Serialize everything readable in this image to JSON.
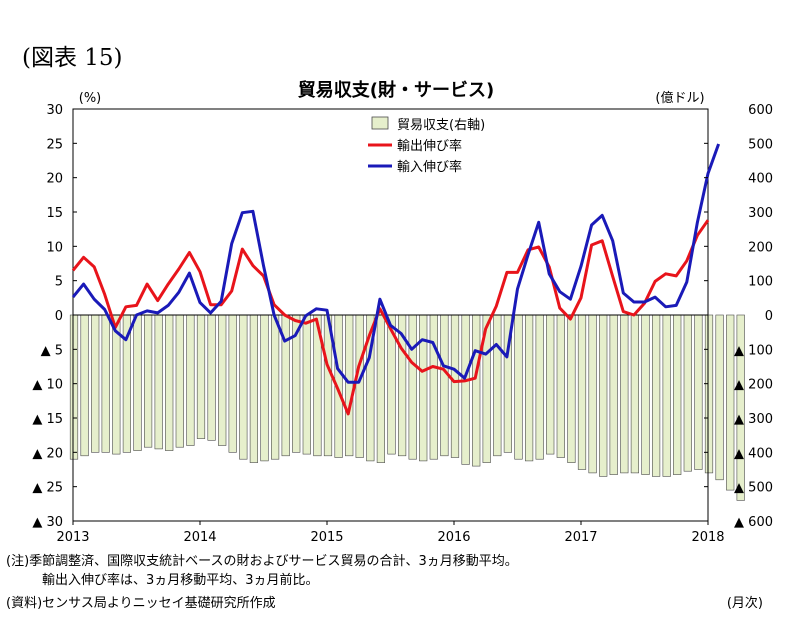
{
  "figure_label": "(図表 15)",
  "chart_data": {
    "type": "bar+line",
    "title": "貿易収支(財・サービス)",
    "y_left_unit": "(%)",
    "y_right_unit": "(億ドル)",
    "y_left_range": [
      -30,
      30
    ],
    "y_right_range": [
      -600,
      600
    ],
    "y_left_ticks": [
      "30",
      "25",
      "20",
      "15",
      "10",
      "5",
      "0",
      "▲ 5",
      "▲ 10",
      "▲ 15",
      "▲ 20",
      "▲ 25",
      "▲ 30"
    ],
    "y_right_ticks": [
      "600",
      "500",
      "400",
      "300",
      "200",
      "100",
      "0",
      "▲ 100",
      "▲ 200",
      "▲ 300",
      "▲ 400",
      "▲ 500",
      "▲ 600"
    ],
    "x_range": [
      2013,
      2018
    ],
    "x_ticks": [
      "2013",
      "2014",
      "2015",
      "2016",
      "2017",
      "2018"
    ],
    "x_unit": "(月次)",
    "grid": false,
    "legend_position": "top-center",
    "series": [
      {
        "name": "貿易収支(右軸)",
        "kind": "bar",
        "axis": "right",
        "color": "#e6efcc",
        "stroke": "#4a4a4a",
        "x_start": 2013.0,
        "x_step": 0.0833333,
        "values": [
          -420,
          -410,
          -400,
          -400,
          -405,
          -400,
          -395,
          -385,
          -390,
          -395,
          -385,
          -380,
          -360,
          -365,
          -380,
          -400,
          -420,
          -430,
          -425,
          -420,
          -410,
          -400,
          -405,
          -410,
          -410,
          -415,
          -410,
          -415,
          -425,
          -430,
          -405,
          -410,
          -420,
          -425,
          -420,
          -410,
          -415,
          -435,
          -440,
          -430,
          -410,
          -400,
          -420,
          -425,
          -420,
          -405,
          -415,
          -430,
          -450,
          -460,
          -470,
          -465,
          -460,
          -460,
          -465,
          -470,
          -470,
          -465,
          -455,
          -450,
          -460,
          -480,
          -510,
          -540
        ]
      },
      {
        "name": "輸出伸び率",
        "kind": "line",
        "axis": "left",
        "color": "#e8141b",
        "x_start": 2013.0,
        "x_step": 0.0833333,
        "values": [
          6.5,
          8.4,
          7.0,
          3.0,
          -1.8,
          1.2,
          1.4,
          4.5,
          2.1,
          4.5,
          6.7,
          9.1,
          6.3,
          1.5,
          1.5,
          3.5,
          9.6,
          7.2,
          5.7,
          1.5,
          0.0,
          -0.8,
          -1.2,
          -0.6,
          -7.2,
          -10.7,
          -14.4,
          -7.5,
          -3.0,
          0.9,
          -2.0,
          -4.8,
          -6.9,
          -8.2,
          -7.5,
          -7.9,
          -9.7,
          -9.6,
          -9.2,
          -2.0,
          1.3,
          6.2,
          6.2,
          9.5,
          9.9,
          7.0,
          1.0,
          -0.6,
          2.5,
          10.2,
          10.8,
          5.6,
          0.5,
          0.0,
          1.7,
          4.9,
          6.0,
          5.7,
          7.9,
          11.6,
          13.8
        ]
      },
      {
        "name": "輸入伸び率",
        "kind": "line",
        "axis": "left",
        "color": "#1a1ab8",
        "x_start": 2013.0,
        "x_step": 0.0833333,
        "values": [
          2.6,
          4.5,
          2.3,
          0.8,
          -2.3,
          -3.6,
          0.0,
          0.6,
          0.3,
          1.4,
          3.3,
          6.1,
          1.8,
          0.3,
          2.0,
          10.4,
          14.9,
          15.1,
          7.2,
          0.0,
          -3.8,
          -3.0,
          -0.1,
          0.9,
          0.7,
          -7.8,
          -9.8,
          -9.8,
          -6.2,
          2.3,
          -1.5,
          -2.7,
          -5.0,
          -3.6,
          -4.0,
          -7.4,
          -7.9,
          -9.2,
          -5.2,
          -5.7,
          -4.3,
          -6.1,
          3.8,
          8.8,
          13.5,
          6.0,
          3.4,
          2.3,
          7.1,
          13.1,
          14.5,
          10.8,
          3.2,
          1.9,
          1.9,
          2.6,
          1.2,
          1.4,
          4.8,
          13.5,
          20.6,
          24.9
        ]
      }
    ]
  },
  "notes": [
    "(注)季節調整済、国際収支統計ベースの財およびサービス貿易の合計、3ヵ月移動平均。",
    "輸出入伸び率は、3ヵ月移動平均、3ヵ月前比。",
    "(資料)センサス局よりニッセイ基礎研究所作成"
  ]
}
